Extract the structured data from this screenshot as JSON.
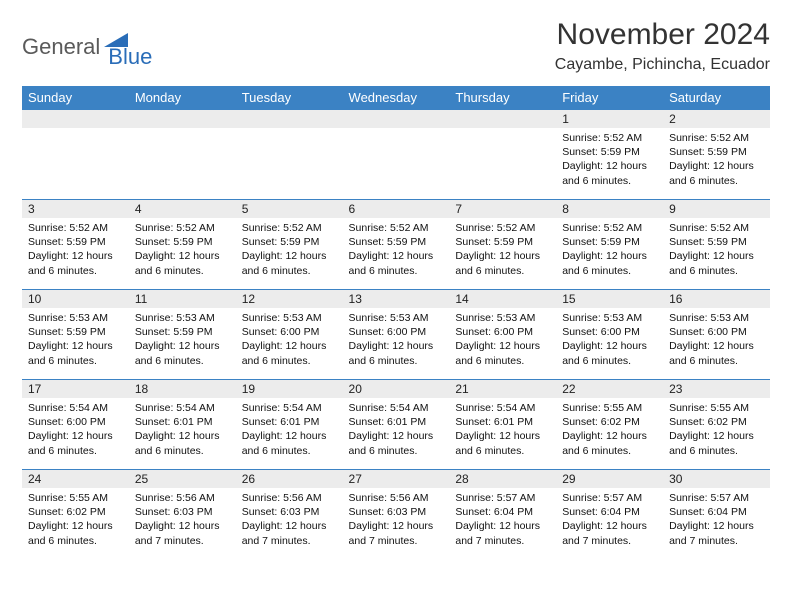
{
  "logo": {
    "part1": "General",
    "part2": "Blue"
  },
  "title": "November 2024",
  "location": "Cayambe, Pichincha, Ecuador",
  "colors": {
    "header_bg": "#3b82c4",
    "header_text": "#ffffff",
    "daynum_bg": "#ececec",
    "row_border": "#3b82c4",
    "logo_gray": "#5a5a5a",
    "logo_blue": "#2a6db8"
  },
  "weekdays": [
    "Sunday",
    "Monday",
    "Tuesday",
    "Wednesday",
    "Thursday",
    "Friday",
    "Saturday"
  ],
  "weeks": [
    [
      {
        "day": "",
        "lines": []
      },
      {
        "day": "",
        "lines": []
      },
      {
        "day": "",
        "lines": []
      },
      {
        "day": "",
        "lines": []
      },
      {
        "day": "",
        "lines": []
      },
      {
        "day": "1",
        "lines": [
          "Sunrise: 5:52 AM",
          "Sunset: 5:59 PM",
          "Daylight: 12 hours and 6 minutes."
        ]
      },
      {
        "day": "2",
        "lines": [
          "Sunrise: 5:52 AM",
          "Sunset: 5:59 PM",
          "Daylight: 12 hours and 6 minutes."
        ]
      }
    ],
    [
      {
        "day": "3",
        "lines": [
          "Sunrise: 5:52 AM",
          "Sunset: 5:59 PM",
          "Daylight: 12 hours and 6 minutes."
        ]
      },
      {
        "day": "4",
        "lines": [
          "Sunrise: 5:52 AM",
          "Sunset: 5:59 PM",
          "Daylight: 12 hours and 6 minutes."
        ]
      },
      {
        "day": "5",
        "lines": [
          "Sunrise: 5:52 AM",
          "Sunset: 5:59 PM",
          "Daylight: 12 hours and 6 minutes."
        ]
      },
      {
        "day": "6",
        "lines": [
          "Sunrise: 5:52 AM",
          "Sunset: 5:59 PM",
          "Daylight: 12 hours and 6 minutes."
        ]
      },
      {
        "day": "7",
        "lines": [
          "Sunrise: 5:52 AM",
          "Sunset: 5:59 PM",
          "Daylight: 12 hours and 6 minutes."
        ]
      },
      {
        "day": "8",
        "lines": [
          "Sunrise: 5:52 AM",
          "Sunset: 5:59 PM",
          "Daylight: 12 hours and 6 minutes."
        ]
      },
      {
        "day": "9",
        "lines": [
          "Sunrise: 5:52 AM",
          "Sunset: 5:59 PM",
          "Daylight: 12 hours and 6 minutes."
        ]
      }
    ],
    [
      {
        "day": "10",
        "lines": [
          "Sunrise: 5:53 AM",
          "Sunset: 5:59 PM",
          "Daylight: 12 hours and 6 minutes."
        ]
      },
      {
        "day": "11",
        "lines": [
          "Sunrise: 5:53 AM",
          "Sunset: 5:59 PM",
          "Daylight: 12 hours and 6 minutes."
        ]
      },
      {
        "day": "12",
        "lines": [
          "Sunrise: 5:53 AM",
          "Sunset: 6:00 PM",
          "Daylight: 12 hours and 6 minutes."
        ]
      },
      {
        "day": "13",
        "lines": [
          "Sunrise: 5:53 AM",
          "Sunset: 6:00 PM",
          "Daylight: 12 hours and 6 minutes."
        ]
      },
      {
        "day": "14",
        "lines": [
          "Sunrise: 5:53 AM",
          "Sunset: 6:00 PM",
          "Daylight: 12 hours and 6 minutes."
        ]
      },
      {
        "day": "15",
        "lines": [
          "Sunrise: 5:53 AM",
          "Sunset: 6:00 PM",
          "Daylight: 12 hours and 6 minutes."
        ]
      },
      {
        "day": "16",
        "lines": [
          "Sunrise: 5:53 AM",
          "Sunset: 6:00 PM",
          "Daylight: 12 hours and 6 minutes."
        ]
      }
    ],
    [
      {
        "day": "17",
        "lines": [
          "Sunrise: 5:54 AM",
          "Sunset: 6:00 PM",
          "Daylight: 12 hours and 6 minutes."
        ]
      },
      {
        "day": "18",
        "lines": [
          "Sunrise: 5:54 AM",
          "Sunset: 6:01 PM",
          "Daylight: 12 hours and 6 minutes."
        ]
      },
      {
        "day": "19",
        "lines": [
          "Sunrise: 5:54 AM",
          "Sunset: 6:01 PM",
          "Daylight: 12 hours and 6 minutes."
        ]
      },
      {
        "day": "20",
        "lines": [
          "Sunrise: 5:54 AM",
          "Sunset: 6:01 PM",
          "Daylight: 12 hours and 6 minutes."
        ]
      },
      {
        "day": "21",
        "lines": [
          "Sunrise: 5:54 AM",
          "Sunset: 6:01 PM",
          "Daylight: 12 hours and 6 minutes."
        ]
      },
      {
        "day": "22",
        "lines": [
          "Sunrise: 5:55 AM",
          "Sunset: 6:02 PM",
          "Daylight: 12 hours and 6 minutes."
        ]
      },
      {
        "day": "23",
        "lines": [
          "Sunrise: 5:55 AM",
          "Sunset: 6:02 PM",
          "Daylight: 12 hours and 6 minutes."
        ]
      }
    ],
    [
      {
        "day": "24",
        "lines": [
          "Sunrise: 5:55 AM",
          "Sunset: 6:02 PM",
          "Daylight: 12 hours and 6 minutes."
        ]
      },
      {
        "day": "25",
        "lines": [
          "Sunrise: 5:56 AM",
          "Sunset: 6:03 PM",
          "Daylight: 12 hours and 7 minutes."
        ]
      },
      {
        "day": "26",
        "lines": [
          "Sunrise: 5:56 AM",
          "Sunset: 6:03 PM",
          "Daylight: 12 hours and 7 minutes."
        ]
      },
      {
        "day": "27",
        "lines": [
          "Sunrise: 5:56 AM",
          "Sunset: 6:03 PM",
          "Daylight: 12 hours and 7 minutes."
        ]
      },
      {
        "day": "28",
        "lines": [
          "Sunrise: 5:57 AM",
          "Sunset: 6:04 PM",
          "Daylight: 12 hours and 7 minutes."
        ]
      },
      {
        "day": "29",
        "lines": [
          "Sunrise: 5:57 AM",
          "Sunset: 6:04 PM",
          "Daylight: 12 hours and 7 minutes."
        ]
      },
      {
        "day": "30",
        "lines": [
          "Sunrise: 5:57 AM",
          "Sunset: 6:04 PM",
          "Daylight: 12 hours and 7 minutes."
        ]
      }
    ]
  ]
}
